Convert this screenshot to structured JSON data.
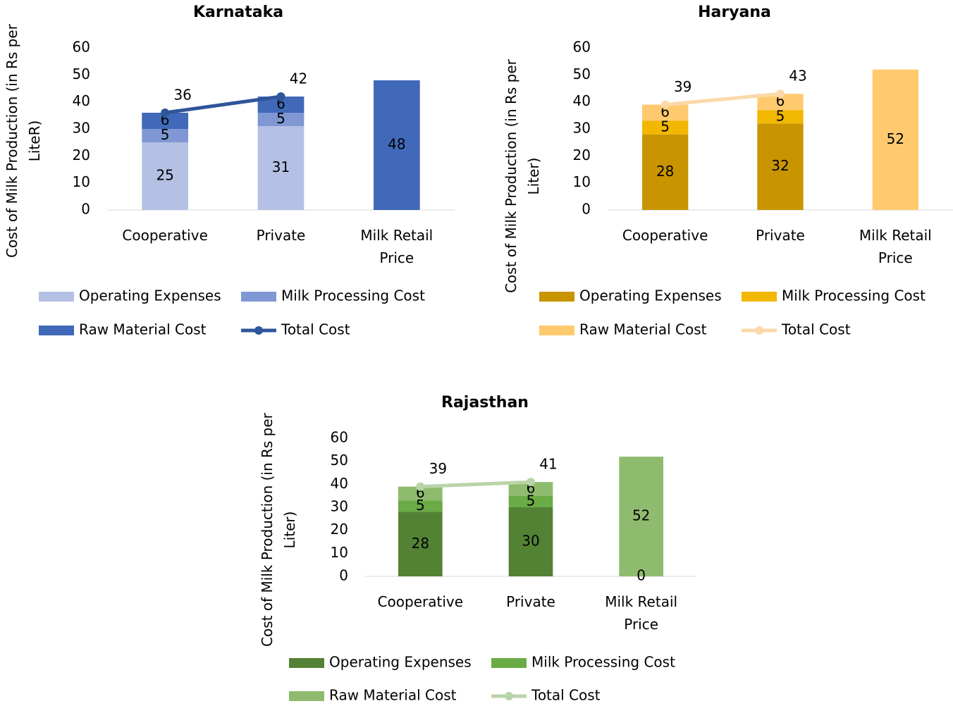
{
  "chart_data": [
    {
      "type": "stacked_bar_line",
      "title": "Karnataka",
      "y_label": "Cost of Milk Production (in Rs per LiteR)",
      "categories": [
        "Cooperative",
        "Private",
        "Milk Retail Price"
      ],
      "series": [
        {
          "name": "Operating Expenses",
          "type": "bar",
          "color": "#b4c1e4",
          "values": [
            25,
            31,
            null
          ]
        },
        {
          "name": "Milk Processing Cost",
          "type": "bar",
          "color": "#7f98d4",
          "values": [
            5,
            5,
            null
          ]
        },
        {
          "name": "Raw Material Cost",
          "type": "bar",
          "color": "#4169b9",
          "values": [
            6,
            6,
            48
          ]
        },
        {
          "name": "Total Cost",
          "type": "line",
          "color": "#2f559a",
          "values": [
            36,
            42,
            null
          ]
        }
      ],
      "ylim": [
        0,
        60
      ],
      "yticks": [
        0,
        10,
        20,
        30,
        40,
        50,
        60
      ]
    },
    {
      "type": "stacked_bar_line",
      "title": "Haryana",
      "y_label": "Cost of Milk Production (in Rs per Liter)",
      "categories": [
        "Cooperative",
        "Private",
        "Milk Retail Price"
      ],
      "series": [
        {
          "name": "Operating Expenses",
          "type": "bar",
          "color": "#c89500",
          "values": [
            28,
            32,
            null
          ]
        },
        {
          "name": "Milk Processing Cost",
          "type": "bar",
          "color": "#f2b700",
          "values": [
            5,
            5,
            null
          ]
        },
        {
          "name": "Raw Material Cost",
          "type": "bar",
          "color": "#ffca6e",
          "values": [
            6,
            6,
            52
          ]
        },
        {
          "name": "Total Cost",
          "type": "line",
          "color": "#fbd9a9",
          "values": [
            39,
            43,
            null
          ]
        }
      ],
      "ylim": [
        0,
        60
      ],
      "yticks": [
        0,
        10,
        20,
        30,
        40,
        50,
        60
      ]
    },
    {
      "type": "stacked_bar_line",
      "title": "Rajasthan",
      "y_label": "Cost of Milk Production (in Rs per Liter)",
      "categories": [
        "Cooperative",
        "Private",
        "Milk Retail Price"
      ],
      "series": [
        {
          "name": "Operating Expenses",
          "type": "bar",
          "color": "#548235",
          "values": [
            28,
            30,
            0
          ]
        },
        {
          "name": "Milk Processing Cost",
          "type": "bar",
          "color": "#6aab46",
          "values": [
            5,
            5,
            null
          ]
        },
        {
          "name": "Raw Material Cost",
          "type": "bar",
          "color": "#8fbb6e",
          "values": [
            6,
            6,
            52
          ]
        },
        {
          "name": "Total Cost",
          "type": "line",
          "color": "#b9d4a9",
          "values": [
            39,
            41,
            null
          ]
        }
      ],
      "ylim": [
        0,
        60
      ],
      "yticks": [
        0,
        10,
        20,
        30,
        40,
        50,
        60
      ]
    }
  ]
}
